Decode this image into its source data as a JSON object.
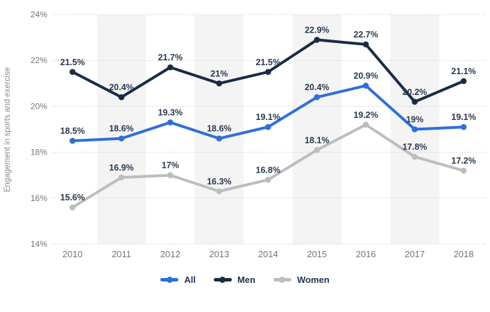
{
  "chart_data": {
    "type": "line",
    "title": "",
    "xlabel": "",
    "ylabel": "Engagement in sports and exercise",
    "categories": [
      "2010",
      "2011",
      "2012",
      "2013",
      "2014",
      "2015",
      "2016",
      "2017",
      "2018"
    ],
    "series": [
      {
        "name": "All",
        "color": "#2e6fd9",
        "values": [
          18.5,
          18.6,
          19.3,
          18.6,
          19.1,
          20.4,
          20.9,
          19.0,
          19.1
        ],
        "labels": [
          "18.5%",
          "18.6%",
          "19.3%",
          "18.6%",
          "19.1%",
          "20.4%",
          "20.9%",
          "19%",
          "19.1%"
        ]
      },
      {
        "name": "Men",
        "color": "#1a2b45",
        "values": [
          21.5,
          20.4,
          21.7,
          21.0,
          21.5,
          22.9,
          22.7,
          20.2,
          21.1
        ],
        "labels": [
          "21.5%",
          "20.4%",
          "21.7%",
          "21%",
          "21.5%",
          "22.9%",
          "22.7%",
          "20.2%",
          "21.1%"
        ]
      },
      {
        "name": "Women",
        "color": "#bdbdbd",
        "values": [
          15.6,
          16.9,
          17.0,
          16.3,
          16.8,
          18.1,
          19.2,
          17.8,
          17.2
        ],
        "labels": [
          "15.6%",
          "16.9%",
          "17%",
          "16.3%",
          "16.8%",
          "18.1%",
          "19.2%",
          "17.8%",
          "17.2%"
        ]
      }
    ],
    "ylim": [
      14,
      24
    ],
    "yticks": [
      14,
      16,
      18,
      20,
      22,
      24
    ],
    "ytick_labels": [
      "14%",
      "16%",
      "18%",
      "20%",
      "22%",
      "24%"
    ],
    "grid": "horizontal-dotted",
    "legend_position": "bottom",
    "colors": {
      "band": "#f4f4f4",
      "gridline": "#c9c9c9",
      "data_label": "#2a3950",
      "axis_tick_text": "#757575",
      "axis_title_text": "#8a8a8a",
      "legend_text": "#22334d"
    }
  }
}
